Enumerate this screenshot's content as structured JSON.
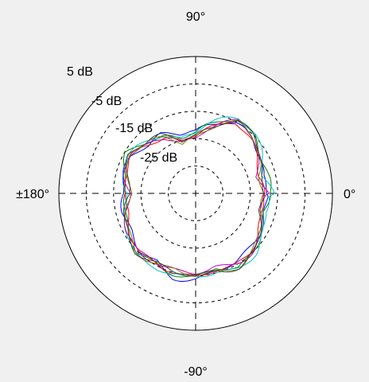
{
  "chart_data": {
    "type": "polar-line",
    "angle_unit": "degrees",
    "radial_unit": "dB",
    "rlim": [
      -35,
      15
    ],
    "radial_ticks": [
      {
        "value": -25,
        "label": "-25 dB"
      },
      {
        "value": -15,
        "label": "-15 dB"
      },
      {
        "value": -5,
        "label": "-5 dB"
      },
      {
        "value": 5,
        "label": "5 dB"
      }
    ],
    "angle_ticks": [
      {
        "angle": 90,
        "label": "90°"
      },
      {
        "angle": 0,
        "label": "0°"
      },
      {
        "angle": -90,
        "label": "-90°"
      },
      {
        "angle": 180,
        "label": "±180°"
      }
    ],
    "grid": true,
    "series_colors": [
      "#0000ff",
      "#008000",
      "#ff0000",
      "#00c0c0",
      "#c000c0",
      "#808000",
      "#404040"
    ],
    "angles_deg": [
      0,
      15,
      30,
      45,
      60,
      75,
      90,
      105,
      120,
      135,
      150,
      165,
      180,
      195,
      210,
      225,
      240,
      255,
      270,
      285,
      300,
      315,
      330,
      345
    ],
    "series": [
      {
        "color": "#0000ff",
        "r": [
          -9.0,
          -10.0,
          -7.5,
          -5.5,
          -5.0,
          -9.0,
          -13.0,
          -12.5,
          -9.5,
          -9.5,
          -8.0,
          -8.0,
          -9.0,
          -7.5,
          -7.0,
          -5.5,
          -6.5,
          -3.5,
          -4.0,
          -5.5,
          -5.5,
          -6.5,
          -8.0,
          -9.5
        ]
      },
      {
        "color": "#008000",
        "r": [
          -8.0,
          -8.0,
          -7.0,
          -4.5,
          -4.0,
          -9.0,
          -13.0,
          -14.0,
          -10.5,
          -8.5,
          -6.0,
          -8.5,
          -10.0,
          -8.0,
          -6.0,
          -4.5,
          -6.0,
          -5.0,
          -4.5,
          -6.5,
          -3.0,
          -5.0,
          -8.0,
          -9.5
        ]
      },
      {
        "color": "#ff0000",
        "r": [
          -10.5,
          -11.0,
          -8.0,
          -6.5,
          -5.5,
          -10.5,
          -14.0,
          -15.0,
          -11.0,
          -10.0,
          -8.0,
          -9.0,
          -10.0,
          -8.5,
          -6.5,
          -5.5,
          -6.5,
          -5.5,
          -4.5,
          -5.5,
          -4.5,
          -6.0,
          -9.0,
          -10.5
        ]
      },
      {
        "color": "#00c0c0",
        "r": [
          -7.0,
          -9.0,
          -6.5,
          -4.0,
          -4.0,
          -8.0,
          -12.5,
          -14.0,
          -10.0,
          -9.0,
          -7.0,
          -8.0,
          -10.0,
          -7.0,
          -6.0,
          -4.0,
          -5.0,
          -4.5,
          -4.5,
          -4.5,
          -3.0,
          -4.5,
          -7.0,
          -9.0
        ]
      },
      {
        "color": "#c000c0",
        "r": [
          -8.5,
          -11.0,
          -8.5,
          -5.5,
          -5.0,
          -10.0,
          -14.5,
          -15.0,
          -11.5,
          -10.5,
          -7.5,
          -8.5,
          -10.5,
          -8.0,
          -6.0,
          -5.5,
          -6.5,
          -6.0,
          -5.5,
          -6.5,
          -5.5,
          -5.5,
          -8.0,
          -11.0
        ]
      },
      {
        "color": "#808000",
        "r": [
          -9.5,
          -10.5,
          -8.0,
          -6.0,
          -5.5,
          -10.0,
          -14.0,
          -15.5,
          -11.0,
          -10.0,
          -7.5,
          -9.5,
          -10.5,
          -8.5,
          -7.0,
          -5.0,
          -6.0,
          -6.0,
          -4.5,
          -5.0,
          -4.0,
          -6.0,
          -8.5,
          -10.0
        ]
      },
      {
        "color": "#404040",
        "r": [
          -9.0,
          -10.0,
          -7.5,
          -5.5,
          -5.0,
          -9.5,
          -13.5,
          -14.5,
          -10.5,
          -9.5,
          -7.0,
          -9.0,
          -10.0,
          -8.0,
          -6.5,
          -5.0,
          -6.0,
          -5.0,
          -4.5,
          -5.5,
          -4.0,
          -5.5,
          -8.0,
          -10.0
        ]
      }
    ]
  }
}
